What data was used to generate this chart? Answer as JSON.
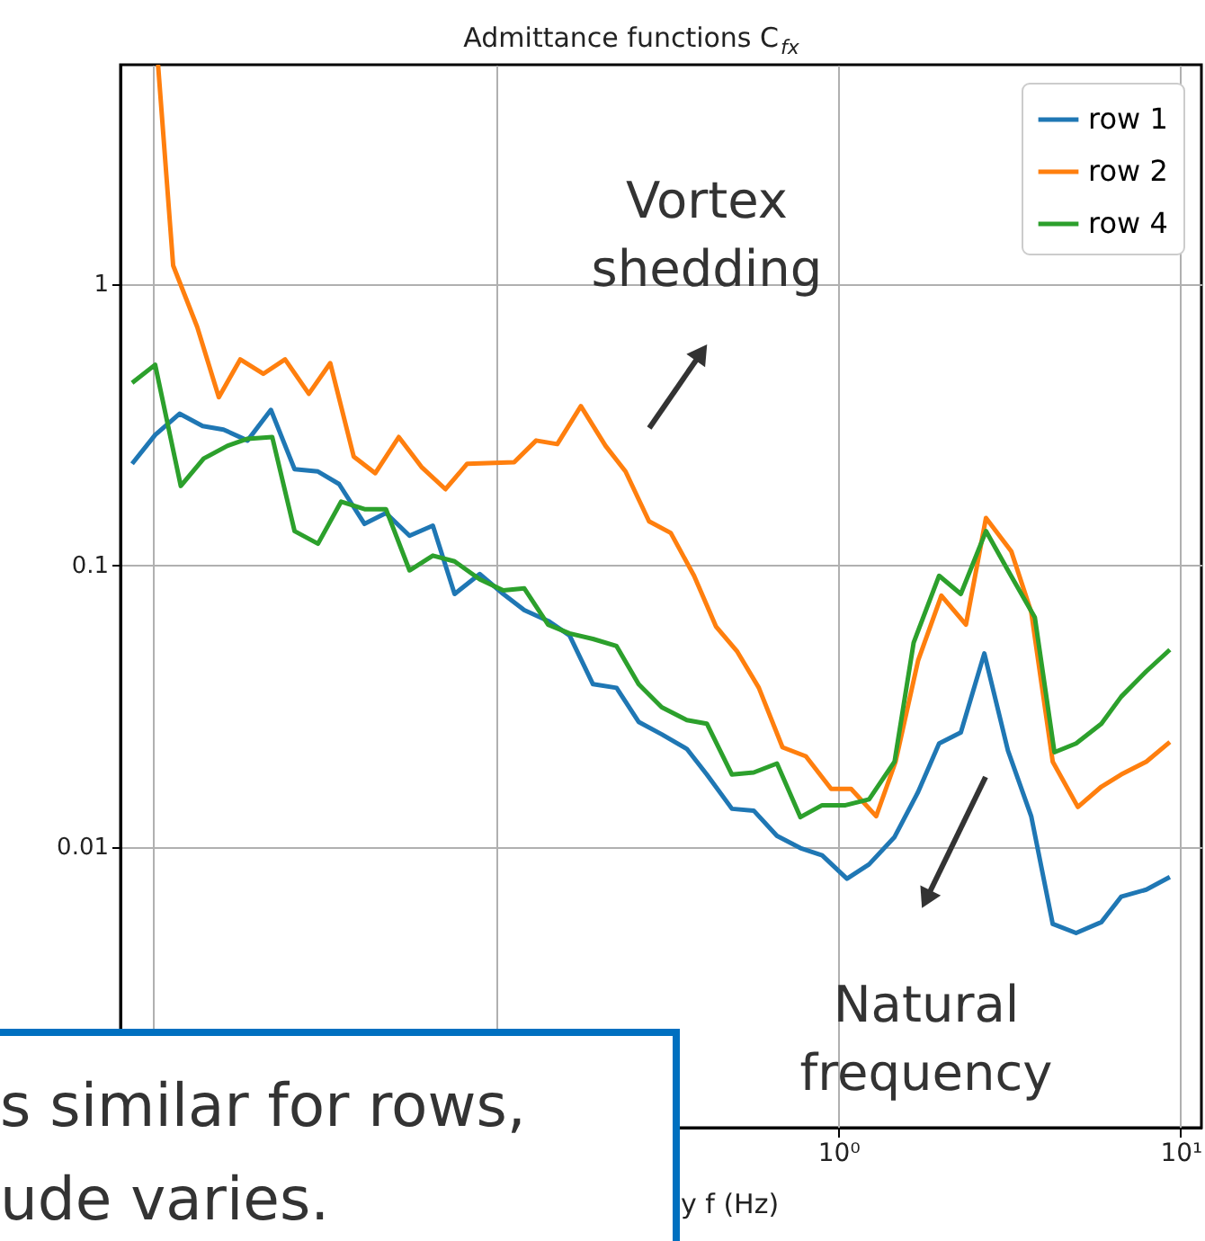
{
  "chart_data": {
    "type": "line",
    "title": "Admittance functions C$_{fx}$",
    "xlabel": "y f (Hz)",
    "log": "xy",
    "grid": true,
    "legend": "top right",
    "xlim": [
      0.008,
      11.5
    ],
    "ylim": [
      0.001,
      6
    ],
    "xticks": [
      {
        "value": 0.01,
        "label": null
      },
      {
        "value": 0.1,
        "label": null
      },
      {
        "value": 1,
        "label": "10⁰"
      },
      {
        "value": 10,
        "label": "10¹"
      }
    ],
    "yticks": [
      0.01,
      0.1,
      1
    ],
    "annotations": [
      "Vortex shedding",
      "Natural frequency",
      "s similar for rows,",
      "ude varies."
    ],
    "series": [
      {
        "name": "row 1",
        "color": "#1f77b4",
        "x": [
          0.00865,
          0.0101,
          0.0119,
          0.0139,
          0.016,
          0.0188,
          0.022,
          0.0258,
          0.0302,
          0.0348,
          0.0413,
          0.0477,
          0.0559,
          0.0654,
          0.0757,
          0.0897,
          0.105,
          0.121,
          0.142,
          0.164,
          0.192,
          0.225,
          0.261,
          0.305,
          0.361,
          0.413,
          0.489,
          0.566,
          0.662,
          0.775,
          0.897,
          1.06,
          1.23,
          1.46,
          1.71,
          1.97,
          2.28,
          2.67,
          3.13,
          3.66,
          4.23,
          4.95,
          5.87,
          6.7,
          7.94,
          9.3
        ],
        "values": [
          0.229,
          0.29,
          0.345,
          0.312,
          0.303,
          0.277,
          0.356,
          0.219,
          0.215,
          0.194,
          0.14,
          0.153,
          0.127,
          0.138,
          0.0789,
          0.0929,
          0.0789,
          0.0691,
          0.0633,
          0.0562,
          0.0377,
          0.0366,
          0.0277,
          0.025,
          0.0222,
          0.018,
          0.0136,
          0.0134,
          0.0109,
          0.00986,
          0.00929,
          0.00767,
          0.00863,
          0.0108,
          0.0156,
          0.0232,
          0.0254,
          0.0485,
          0.0219,
          0.0128,
          0.0053,
          0.00492,
          0.00538,
          0.00662,
          0.00702,
          0.00778
        ]
      },
      {
        "name": "row 2",
        "color": "#ff7f0e",
        "x": [
          0.0103,
          0.0114,
          0.0134,
          0.0155,
          0.0179,
          0.0209,
          0.0242,
          0.0284,
          0.0328,
          0.0384,
          0.0444,
          0.052,
          0.0608,
          0.0712,
          0.0824,
          0.113,
          0.131,
          0.151,
          0.177,
          0.209,
          0.239,
          0.28,
          0.324,
          0.379,
          0.439,
          0.507,
          0.586,
          0.687,
          0.804,
          0.953,
          1.09,
          1.29,
          1.47,
          1.71,
          2.0,
          2.36,
          2.7,
          3.2,
          3.66,
          4.23,
          5.01,
          5.87,
          6.7,
          7.94,
          9.3
        ],
        "values": [
          6,
          1.16,
          0.702,
          0.395,
          0.538,
          0.478,
          0.538,
          0.406,
          0.522,
          0.243,
          0.212,
          0.285,
          0.222,
          0.186,
          0.229,
          0.232,
          0.277,
          0.269,
          0.367,
          0.265,
          0.215,
          0.143,
          0.13,
          0.0916,
          0.0605,
          0.0492,
          0.0366,
          0.0225,
          0.0209,
          0.016,
          0.016,
          0.0128,
          0.02,
          0.0457,
          0.0778,
          0.0614,
          0.147,
          0.112,
          0.0681,
          0.02,
          0.0138,
          0.0163,
          0.018,
          0.02,
          0.0235
        ]
      },
      {
        "name": "row 4",
        "color": "#2ca02c",
        "x": [
          0.00865,
          0.0101,
          0.012,
          0.014,
          0.0164,
          0.0188,
          0.0222,
          0.0258,
          0.0302,
          0.0353,
          0.0413,
          0.0477,
          0.0559,
          0.0654,
          0.0757,
          0.0897,
          0.105,
          0.121,
          0.142,
          0.164,
          0.192,
          0.225,
          0.261,
          0.305,
          0.361,
          0.413,
          0.489,
          0.566,
          0.662,
          0.775,
          0.897,
          1.05,
          1.23,
          1.46,
          1.66,
          1.97,
          2.28,
          2.7,
          3.13,
          3.75,
          4.28,
          4.95,
          5.87,
          6.7,
          7.94,
          9.3
        ],
        "values": [
          0.444,
          0.515,
          0.191,
          0.239,
          0.265,
          0.281,
          0.285,
          0.132,
          0.119,
          0.168,
          0.158,
          0.158,
          0.0957,
          0.108,
          0.103,
          0.0889,
          0.0813,
          0.0826,
          0.0614,
          0.0571,
          0.0546,
          0.0515,
          0.0377,
          0.0312,
          0.0281,
          0.0273,
          0.018,
          0.0183,
          0.0197,
          0.0127,
          0.014,
          0.014,
          0.0147,
          0.02,
          0.053,
          0.0916,
          0.0789,
          0.132,
          0.0957,
          0.0652,
          0.0216,
          0.0232,
          0.0273,
          0.034,
          0.0419,
          0.05
        ]
      }
    ]
  }
}
